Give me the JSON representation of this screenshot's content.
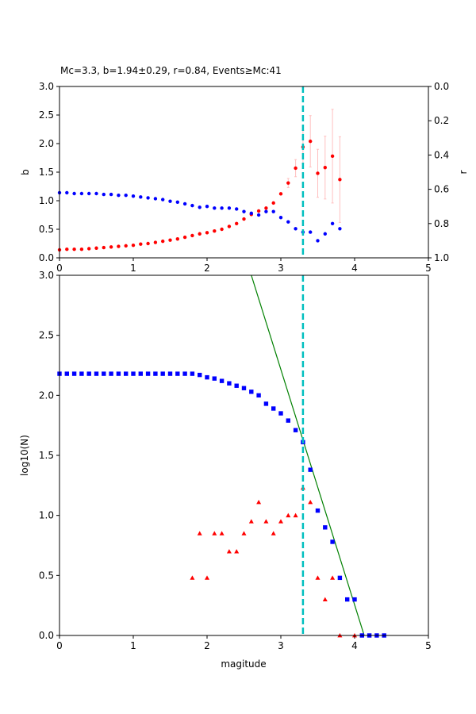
{
  "figure_title": "Mc=3.3, b=1.94±0.29, r=0.84, Events≥Mc:41",
  "colors": {
    "b_series": "#ff0000",
    "b_error": "#ffc0c0",
    "r_series": "#0000ff",
    "mc_line": "#00bfbf",
    "fit_line": "#008000",
    "cumulative": "#0000ff",
    "noncumulative": "#ff0000"
  },
  "chart_data": [
    {
      "type": "scatter",
      "title": "Mc=3.3, b=1.94±0.29, r=0.84, Events≥Mc:41",
      "xlabel": "",
      "ylabel": "b",
      "ylabel_right": "r",
      "xlim": [
        0,
        5
      ],
      "ylim": [
        0,
        3.0
      ],
      "ylim_right": [
        1.0,
        0.0
      ],
      "xticks": [
        "0",
        "1",
        "2",
        "3",
        "4",
        "5"
      ],
      "yticks": [
        "0.0",
        "0.5",
        "1.0",
        "1.5",
        "2.0",
        "2.5",
        "3.0"
      ],
      "yticks_right": [
        "0.0",
        "0.2",
        "0.4",
        "0.6",
        "0.8",
        "1.0"
      ],
      "mc_line_x": 3.3,
      "series": [
        {
          "name": "b",
          "axis": "left",
          "x": [
            0.0,
            0.1,
            0.2,
            0.3,
            0.4,
            0.5,
            0.6,
            0.7,
            0.8,
            0.9,
            1.0,
            1.1,
            1.2,
            1.3,
            1.4,
            1.5,
            1.6,
            1.7,
            1.8,
            1.9,
            2.0,
            2.1,
            2.2,
            2.3,
            2.4,
            2.5,
            2.6,
            2.7,
            2.8,
            2.9,
            3.0,
            3.1,
            3.2,
            3.3,
            3.4,
            3.5,
            3.6,
            3.7,
            3.8
          ],
          "y": [
            0.14,
            0.15,
            0.15,
            0.15,
            0.16,
            0.17,
            0.18,
            0.19,
            0.2,
            0.21,
            0.22,
            0.24,
            0.25,
            0.27,
            0.29,
            0.31,
            0.33,
            0.36,
            0.39,
            0.42,
            0.44,
            0.47,
            0.5,
            0.55,
            0.6,
            0.68,
            0.76,
            0.82,
            0.87,
            0.96,
            1.12,
            1.31,
            1.57,
            1.94,
            2.04,
            1.48,
            1.58,
            1.78,
            1.37
          ],
          "yerr": [
            0,
            0,
            0,
            0,
            0,
            0,
            0,
            0,
            0,
            0,
            0,
            0,
            0,
            0,
            0,
            0,
            0,
            0,
            0,
            0,
            0,
            0,
            0,
            0,
            0,
            0,
            0,
            0,
            0,
            0,
            0,
            0.08,
            0.15,
            0.29,
            0.45,
            0.42,
            0.55,
            0.82,
            0.75
          ]
        },
        {
          "name": "r",
          "axis": "right",
          "x": [
            0.0,
            0.1,
            0.2,
            0.3,
            0.4,
            0.5,
            0.6,
            0.7,
            0.8,
            0.9,
            1.0,
            1.1,
            1.2,
            1.3,
            1.4,
            1.5,
            1.6,
            1.7,
            1.8,
            1.9,
            2.0,
            2.1,
            2.2,
            2.3,
            2.4,
            2.5,
            2.6,
            2.7,
            2.8,
            2.9,
            3.0,
            3.1,
            3.2,
            3.3,
            3.4,
            3.5,
            3.6,
            3.7,
            3.8
          ],
          "y": [
            0.62,
            0.62,
            0.625,
            0.625,
            0.625,
            0.625,
            0.63,
            0.63,
            0.635,
            0.635,
            0.64,
            0.645,
            0.65,
            0.655,
            0.66,
            0.67,
            0.675,
            0.685,
            0.695,
            0.705,
            0.7,
            0.71,
            0.71,
            0.71,
            0.715,
            0.73,
            0.74,
            0.75,
            0.73,
            0.73,
            0.765,
            0.79,
            0.83,
            0.85,
            0.85,
            0.9,
            0.86,
            0.8,
            0.83
          ]
        }
      ]
    },
    {
      "type": "scatter",
      "title": "",
      "xlabel": "magitude",
      "ylabel": "log10(N)",
      "xlim": [
        0,
        5
      ],
      "ylim": [
        0,
        3.0
      ],
      "xticks": [
        "0",
        "1",
        "2",
        "3",
        "4",
        "5"
      ],
      "yticks": [
        "0.0",
        "0.5",
        "1.0",
        "1.5",
        "2.0",
        "2.5",
        "3.0"
      ],
      "mc_line_x": 3.3,
      "fit_line": {
        "x": [
          2.6,
          4.13
        ],
        "y": [
          3.0,
          0.0
        ]
      },
      "series": [
        {
          "name": "cumulative",
          "marker": "square",
          "x": [
            0.0,
            0.1,
            0.2,
            0.3,
            0.4,
            0.5,
            0.6,
            0.7,
            0.8,
            0.9,
            1.0,
            1.1,
            1.2,
            1.3,
            1.4,
            1.5,
            1.6,
            1.7,
            1.8,
            1.9,
            2.0,
            2.1,
            2.2,
            2.3,
            2.4,
            2.5,
            2.6,
            2.7,
            2.8,
            2.9,
            3.0,
            3.1,
            3.2,
            3.3,
            3.4,
            3.5,
            3.6,
            3.7,
            3.8,
            3.9,
            4.0,
            4.1,
            4.2,
            4.3,
            4.4
          ],
          "y": [
            2.18,
            2.18,
            2.18,
            2.18,
            2.18,
            2.18,
            2.18,
            2.18,
            2.18,
            2.18,
            2.18,
            2.18,
            2.18,
            2.18,
            2.18,
            2.18,
            2.18,
            2.18,
            2.18,
            2.17,
            2.15,
            2.14,
            2.12,
            2.1,
            2.08,
            2.06,
            2.03,
            2.0,
            1.93,
            1.89,
            1.85,
            1.79,
            1.71,
            1.61,
            1.38,
            1.04,
            0.9,
            0.78,
            0.48,
            0.3,
            0.3,
            0.0,
            0.0,
            0.0,
            0.0
          ]
        },
        {
          "name": "noncumulative",
          "marker": "triangle",
          "x": [
            1.8,
            1.9,
            2.0,
            2.1,
            2.2,
            2.3,
            2.4,
            2.5,
            2.6,
            2.7,
            2.8,
            2.9,
            3.0,
            3.1,
            3.2,
            3.3,
            3.4,
            3.5,
            3.6,
            3.7,
            3.8,
            4.0
          ],
          "y": [
            0.48,
            0.85,
            0.48,
            0.85,
            0.85,
            0.7,
            0.7,
            0.85,
            0.95,
            1.11,
            0.95,
            0.85,
            0.95,
            1.0,
            1.0,
            1.23,
            1.11,
            0.48,
            0.3,
            0.48,
            0.0,
            0.0
          ]
        }
      ]
    }
  ]
}
